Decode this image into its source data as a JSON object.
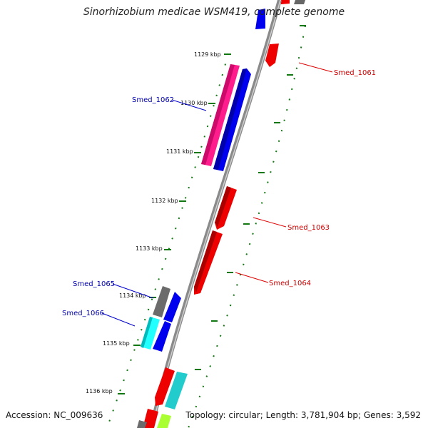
{
  "title": "Sinorhizobium medicae WSM419, complete genome",
  "footer": {
    "accession": "Accession: NC_009636",
    "summary": "Topology: circular; Length: 3,781,904 bp; Genes: 3,592"
  },
  "colors": {
    "forward_gene": "#ff0000",
    "reverse_gene": "#0000ff",
    "label_forward": "#cc0000",
    "label_reverse": "#0000aa",
    "backbone": "#888888",
    "ticks": "#117711"
  },
  "ruler": {
    "unit": "kbp",
    "ticks": [
      "1129 kbp",
      "1130 kbp",
      "1131 kbp",
      "1132 kbp",
      "1133 kbp",
      "1134 kbp",
      "1135 kbp",
      "1136 kbp"
    ]
  },
  "gene_labels": [
    {
      "text": "Smed_1061",
      "strand": "forward"
    },
    {
      "text": "Smed_1062",
      "strand": "reverse"
    },
    {
      "text": "Smed_1063",
      "strand": "forward"
    },
    {
      "text": "Smed_1064",
      "strand": "forward"
    },
    {
      "text": "Smed_1065",
      "strand": "reverse"
    },
    {
      "text": "Smed_1066",
      "strand": "reverse"
    }
  ],
  "genes": [
    {
      "track": "forward_outer",
      "color": "#ff0000",
      "name": "Smed_1061"
    },
    {
      "track": "reverse_inner",
      "color": "#ff1493",
      "name": "Smed_1062"
    },
    {
      "track": "reverse_outer",
      "color": "#0000ff"
    },
    {
      "track": "forward_outer",
      "color": "#ff0000",
      "name": "Smed_1063"
    },
    {
      "track": "forward_inner",
      "color": "#ff0000",
      "name": "Smed_1064"
    },
    {
      "track": "reverse_inner",
      "color": "#666666",
      "name": "Smed_1065"
    },
    {
      "track": "reverse_outer",
      "color": "#0000ff"
    },
    {
      "track": "reverse_inner",
      "color": "#00ffff",
      "name": "Smed_1066"
    },
    {
      "track": "reverse_outer",
      "color": "#0000ff"
    },
    {
      "track": "forward_inner",
      "color": "#ff0000"
    },
    {
      "track": "forward_outer",
      "color": "#00cccc"
    },
    {
      "track": "forward_inner",
      "color": "#ff0000"
    },
    {
      "track": "forward_outer",
      "color": "#aaff33"
    }
  ]
}
